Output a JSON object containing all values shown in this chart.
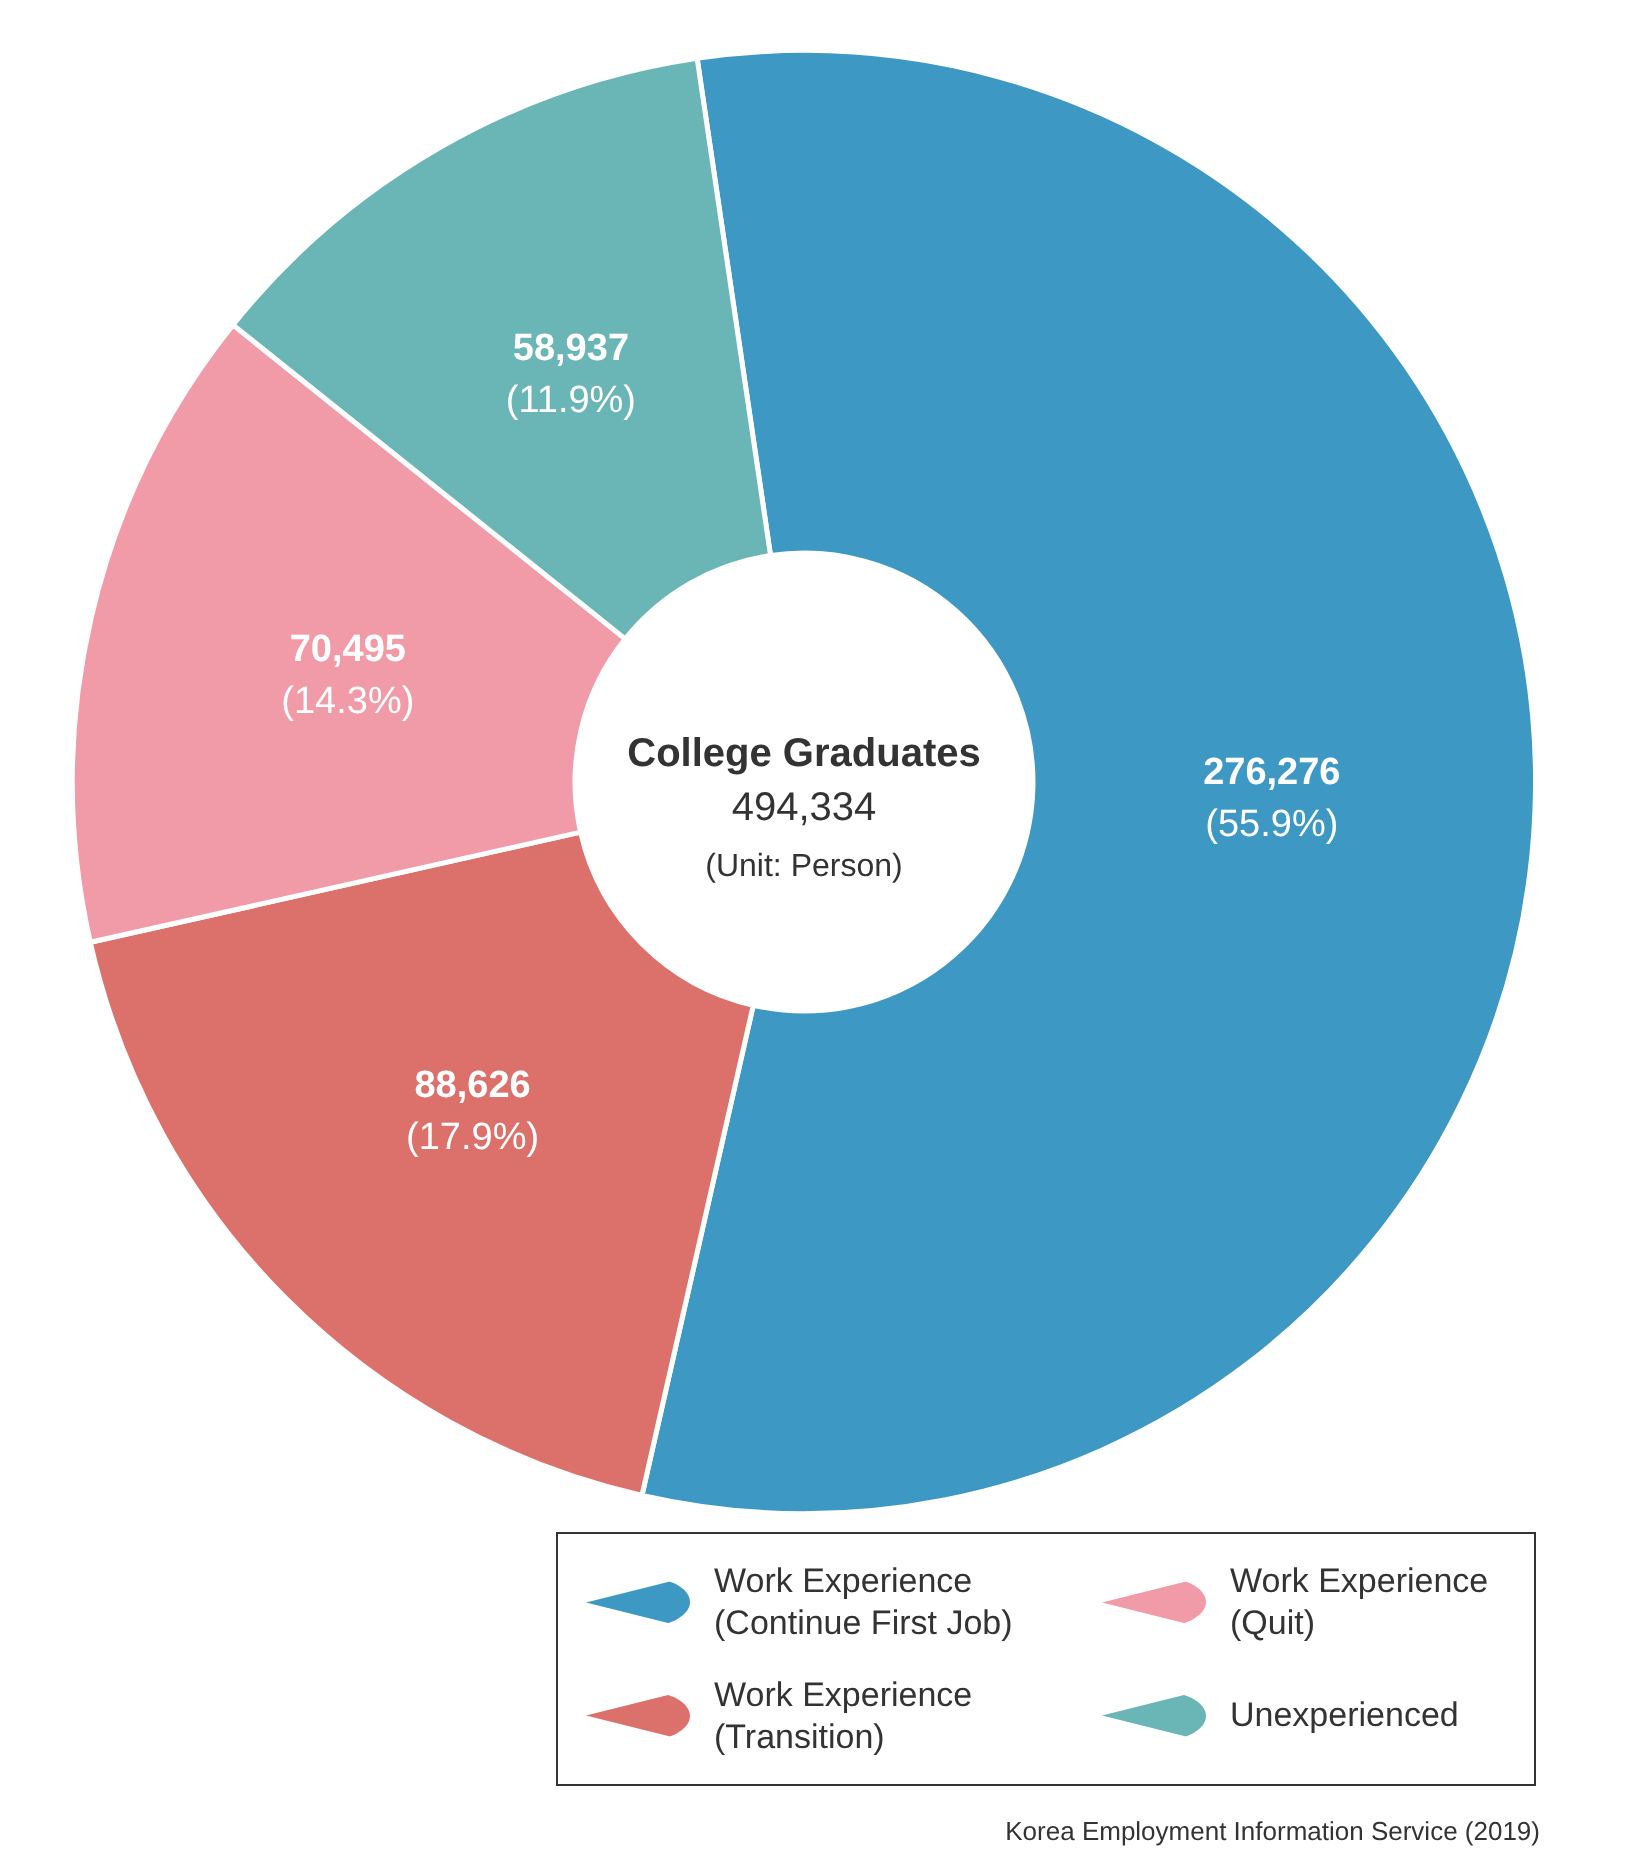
{
  "chart_data": {
    "type": "donut",
    "title": "College Graduates",
    "subtitle": "494,334",
    "categories": [
      "Work Experience (Continue First Job)",
      "Work Experience (Transition)",
      "Work Experience (Quit)",
      "Unexperienced"
    ],
    "values": [
      276276,
      88626,
      70495,
      58937
    ],
    "colors": [
      "#3d98c4",
      "#dc716b",
      "#f29ba8",
      "#6ab5b5"
    ],
    "value_labels": [
      "276,276\n(55.9%)",
      "88,626\n(17.9%)",
      "70,495\n(14.3%)",
      "58,937\n(11.9%)"
    ],
    "annotations": [
      "(Unit: Person)",
      "Korea Employment Information Service (2019)"
    ],
    "legend": "bottom right"
  }
}
